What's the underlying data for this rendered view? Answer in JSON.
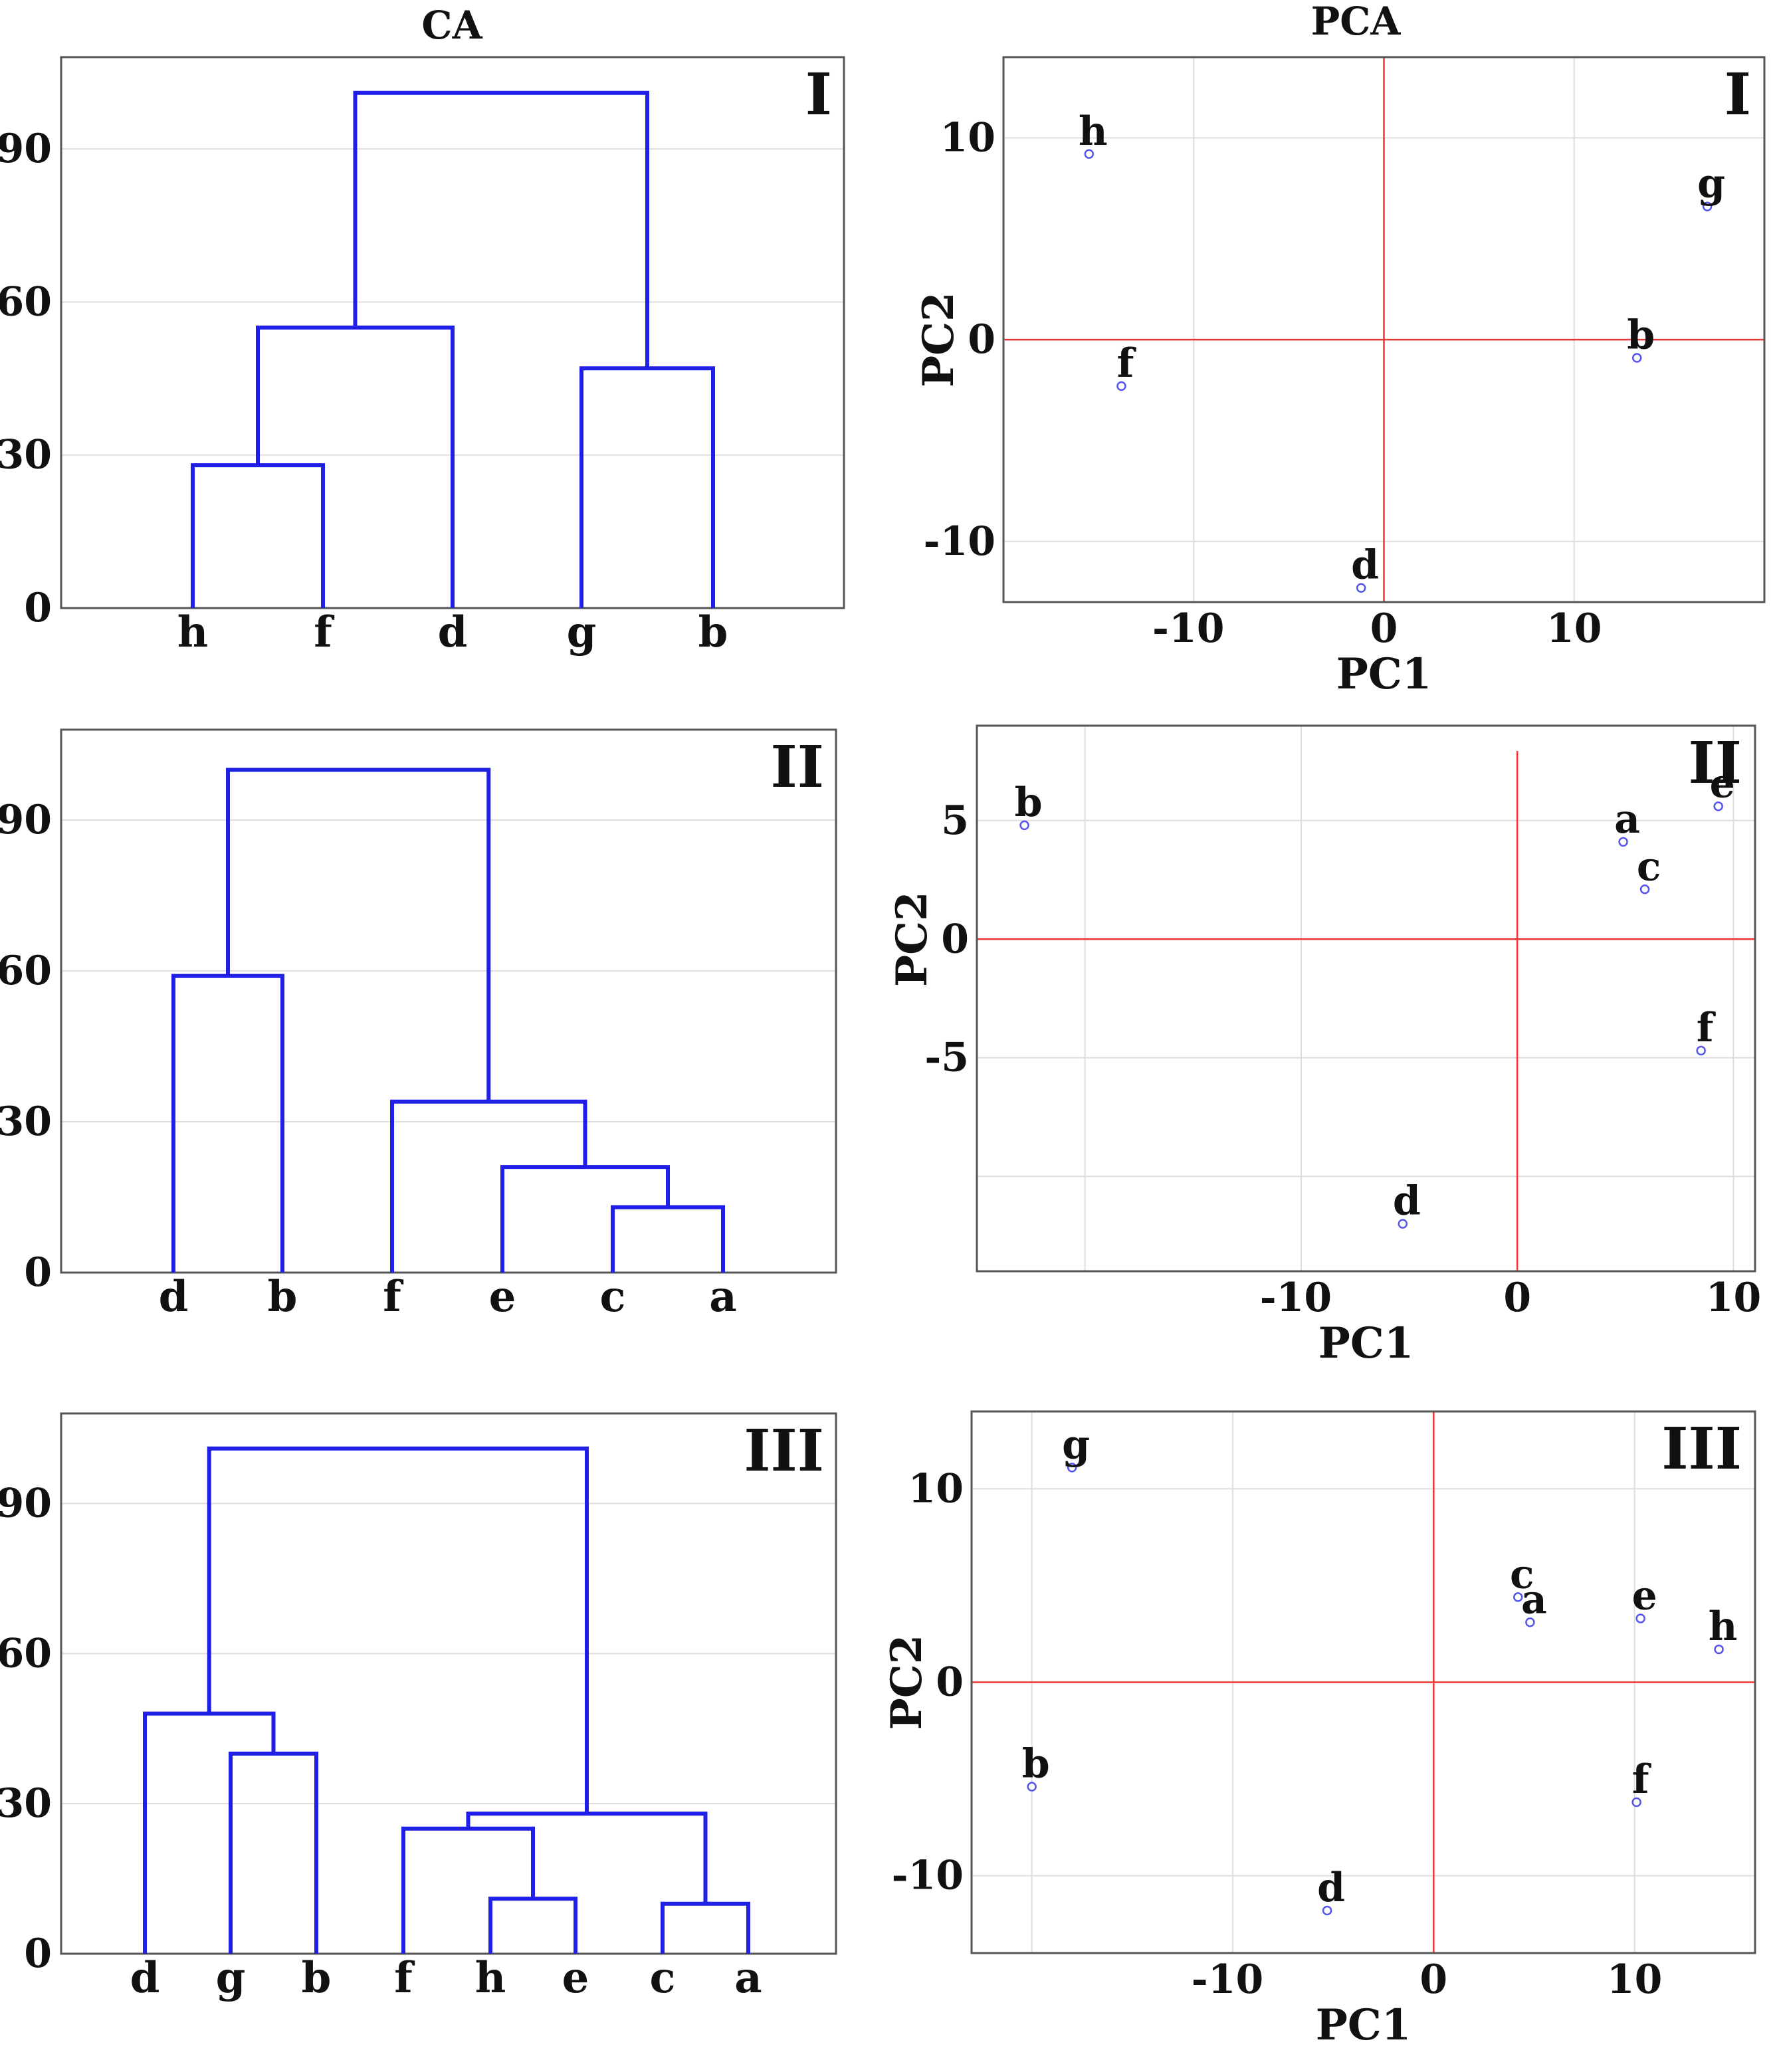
{
  "titles": {
    "ca": "CA",
    "pca": "PCA"
  },
  "colors": {
    "dendrogram": "#1f1fe6",
    "points": "#5555ee",
    "zero_lines": "#ee3333",
    "grid": "#dddddd",
    "frame": "#555555"
  },
  "chart_data": [
    {
      "type": "dendrogram",
      "column": "CA",
      "panel_id": "I",
      "ylim": [
        0,
        108
      ],
      "yticks": [
        0,
        30,
        60,
        90
      ],
      "leaves": [
        "h",
        "f",
        "d",
        "g",
        "b"
      ],
      "merges": [
        {
          "left": "leaf:0",
          "right": "leaf:1",
          "height": 28
        },
        {
          "left": "node:0",
          "right": "leaf:2",
          "height": 55
        },
        {
          "left": "leaf:3",
          "right": "leaf:4",
          "height": 47
        },
        {
          "left": "node:1",
          "right": "node:2",
          "height": 101
        }
      ]
    },
    {
      "type": "scatter",
      "column": "PCA",
      "panel_id": "I",
      "xlabel": "PC1",
      "ylabel": "PC2",
      "xlim": [
        -20,
        20
      ],
      "ylim": [
        -13,
        14
      ],
      "xticks": [
        -10,
        0,
        10
      ],
      "yticks": [
        -10,
        0,
        10
      ],
      "xgrid": [
        -10,
        0,
        10
      ],
      "ygrid": [
        -10,
        0,
        10
      ],
      "points": [
        {
          "label": "h",
          "x": -15.5,
          "y": 9.2
        },
        {
          "label": "f",
          "x": -13.8,
          "y": -2.3
        },
        {
          "label": "d",
          "x": -1.2,
          "y": -12.3
        },
        {
          "label": "b",
          "x": 13.3,
          "y": -0.9
        },
        {
          "label": "g",
          "x": 17.0,
          "y": 6.6
        }
      ]
    },
    {
      "type": "dendrogram",
      "column": "CA",
      "panel_id": "II",
      "ylim": [
        0,
        108
      ],
      "yticks": [
        0,
        30,
        60,
        90
      ],
      "leaves": [
        "d",
        "b",
        "f",
        "e",
        "c",
        "a"
      ],
      "merges": [
        {
          "left": "leaf:4",
          "right": "leaf:5",
          "height": 13
        },
        {
          "left": "leaf:3",
          "right": "node:0",
          "height": 21
        },
        {
          "left": "leaf:2",
          "right": "node:1",
          "height": 34
        },
        {
          "left": "leaf:0",
          "right": "leaf:1",
          "height": 59
        },
        {
          "left": "node:3",
          "right": "node:2",
          "height": 100
        }
      ]
    },
    {
      "type": "scatter",
      "column": "PCA",
      "panel_id": "II",
      "xlabel": "PC1",
      "ylabel": "PC2",
      "xlim": [
        -25,
        11
      ],
      "ylim": [
        -14,
        9
      ],
      "xticks": [
        -10,
        0,
        10
      ],
      "yticks": [
        -5,
        0,
        5
      ],
      "xgrid": [
        -20,
        -10,
        0,
        10
      ],
      "ygrid": [
        -10,
        -5,
        0,
        5
      ],
      "points": [
        {
          "label": "b",
          "x": -22.8,
          "y": 4.8
        },
        {
          "label": "a",
          "x": 4.9,
          "y": 4.1
        },
        {
          "label": "c",
          "x": 5.9,
          "y": 2.1
        },
        {
          "label": "e",
          "x": 9.3,
          "y": 5.6
        },
        {
          "label": "f",
          "x": 8.5,
          "y": -4.7
        },
        {
          "label": "d",
          "x": -5.3,
          "y": -12.0
        }
      ]
    },
    {
      "type": "dendrogram",
      "column": "CA",
      "panel_id": "III",
      "ylim": [
        0,
        108
      ],
      "yticks": [
        0,
        30,
        60,
        90
      ],
      "leaves": [
        "d",
        "g",
        "b",
        "f",
        "h",
        "e",
        "c",
        "a"
      ],
      "merges": [
        {
          "left": "leaf:4",
          "right": "leaf:5",
          "height": 11
        },
        {
          "left": "leaf:6",
          "right": "leaf:7",
          "height": 10
        },
        {
          "left": "leaf:3",
          "right": "node:0",
          "height": 25
        },
        {
          "left": "node:2",
          "right": "node:1",
          "height": 28
        },
        {
          "left": "leaf:1",
          "right": "leaf:2",
          "height": 40
        },
        {
          "left": "leaf:0",
          "right": "node:4",
          "height": 48
        },
        {
          "left": "node:5",
          "right": "node:3",
          "height": 101
        }
      ]
    },
    {
      "type": "scatter",
      "column": "PCA",
      "panel_id": "III",
      "xlabel": "PC1",
      "ylabel": "PC2",
      "xlim": [
        -23,
        16
      ],
      "ylim": [
        -14,
        14
      ],
      "xticks": [
        -10,
        0,
        10
      ],
      "yticks": [
        -10,
        0,
        10
      ],
      "xgrid": [
        -20,
        -10,
        0,
        10
      ],
      "ygrid": [
        -10,
        0,
        10
      ],
      "points": [
        {
          "label": "g",
          "x": -18.0,
          "y": 11.1
        },
        {
          "label": "c",
          "x": 4.2,
          "y": 4.4
        },
        {
          "label": "a",
          "x": 4.8,
          "y": 3.1
        },
        {
          "label": "e",
          "x": 10.3,
          "y": 3.3
        },
        {
          "label": "h",
          "x": 14.2,
          "y": 1.7
        },
        {
          "label": "b",
          "x": -20.0,
          "y": -5.4
        },
        {
          "label": "f",
          "x": 10.1,
          "y": -6.2
        },
        {
          "label": "d",
          "x": -5.3,
          "y": -11.8
        }
      ]
    }
  ]
}
